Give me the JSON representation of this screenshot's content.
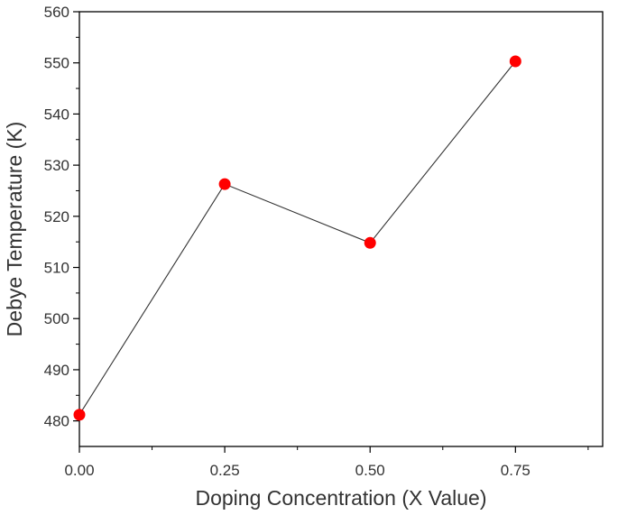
{
  "chart_data": {
    "type": "line",
    "title": "",
    "xlabel": "Doping Concentration (X Value)",
    "ylabel": "Debye Temperature (K)",
    "xlim": [
      0,
      0.9
    ],
    "ylim": [
      475,
      560
    ],
    "x_ticks": [
      0,
      0.25,
      0.5,
      0.75
    ],
    "x_tick_labels": [
      "0.00",
      "0.25",
      "0.50",
      "0.75"
    ],
    "y_ticks": [
      480,
      490,
      500,
      510,
      520,
      530,
      540,
      550,
      560
    ],
    "y_tick_labels": [
      "480",
      "490",
      "500",
      "510",
      "520",
      "530",
      "540",
      "550",
      "560"
    ],
    "grid": false,
    "legend": "none",
    "series": [
      {
        "x": [
          0.0,
          0.25,
          0.5,
          0.75
        ],
        "y": [
          481.2,
          526.3,
          514.8,
          550.3
        ],
        "line_color": "#333333",
        "marker_color": "#ff0000"
      }
    ]
  }
}
